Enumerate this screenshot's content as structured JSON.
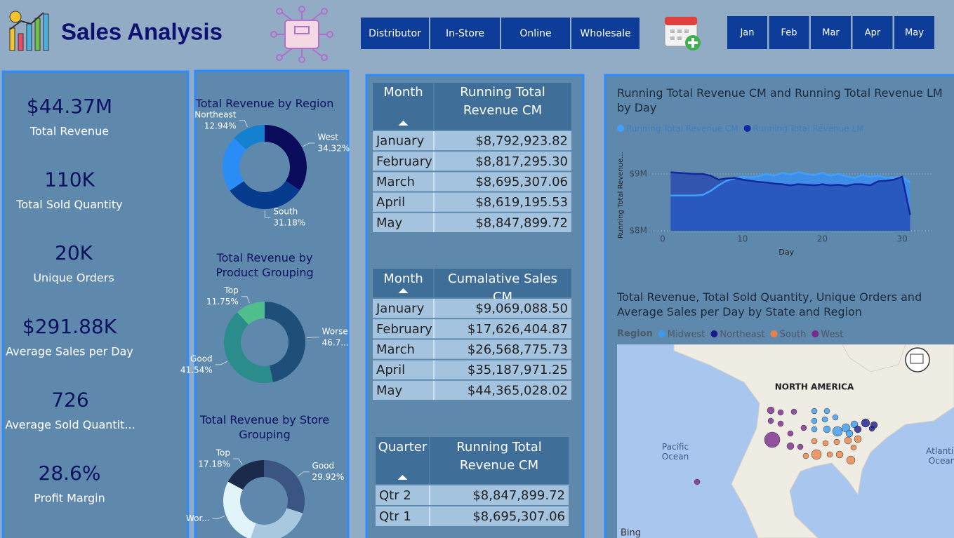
{
  "header": {
    "title": "Sales Analysis"
  },
  "filters": {
    "channels": [
      "Distributor",
      "In-Store",
      "Online",
      "Wholesale"
    ],
    "months": [
      "Jan",
      "Feb",
      "Mar",
      "Apr",
      "May"
    ]
  },
  "kpis": [
    {
      "value": "$44.37M",
      "label": "Total Revenue"
    },
    {
      "value": "110K",
      "label": "Total Sold Quantity"
    },
    {
      "value": "20K",
      "label": "Unique Orders"
    },
    {
      "value": "$291.88K",
      "label": "Average Sales per Day"
    },
    {
      "value": "726",
      "label": "Average Sold Quantit..."
    },
    {
      "value": "28.6%",
      "label": "Profit Margin"
    }
  ],
  "tables": [
    {
      "headers": [
        "Month",
        "Running Total Revenue CM"
      ],
      "rows": [
        [
          "January",
          "$8,792,923.82"
        ],
        [
          "February",
          "$8,817,295.30"
        ],
        [
          "March",
          "$8,695,307.06"
        ],
        [
          "April",
          "$8,619,195.53"
        ],
        [
          "May",
          "$8,847,899.72"
        ]
      ]
    },
    {
      "headers": [
        "Month",
        "Cumalative Sales CM"
      ],
      "rows": [
        [
          "January",
          "$9,069,088.50"
        ],
        [
          "February",
          "$17,626,404.87"
        ],
        [
          "March",
          "$26,568,775.73"
        ],
        [
          "April",
          "$35,187,971.25"
        ],
        [
          "May",
          "$44,365,028.02"
        ]
      ]
    },
    {
      "headers": [
        "Quarter",
        "Running Total Revenue CM"
      ],
      "rows": [
        [
          "Qtr 2",
          "$8,847,899.72"
        ],
        [
          "Qtr 1",
          "$8,695,307.06"
        ]
      ]
    }
  ],
  "chart_data": [
    {
      "type": "pie",
      "title": "Total Revenue by Region",
      "categories": [
        "West",
        "South",
        null,
        "Northeast"
      ],
      "values": [
        34.32,
        31.18,
        21.56,
        12.94
      ],
      "value_labels": [
        "34.32%",
        "31.18%",
        null,
        "12.94%"
      ],
      "colors": [
        "#0b0b5c",
        "#063b8e",
        "#2a8cf5",
        "#1580d0"
      ]
    },
    {
      "type": "pie",
      "title": "Total Revenue by Product Grouping",
      "categories": [
        "Worse",
        "Good",
        "Top"
      ],
      "values": [
        46.71,
        41.54,
        11.75
      ],
      "value_labels": [
        "46.7...",
        "41.54%",
        "11.75%"
      ],
      "colors": [
        "#1f4e79",
        "#2b8c8c",
        "#4fc08d"
      ]
    },
    {
      "type": "pie",
      "title": "Total Revenue by Store Grouping",
      "categories": [
        "Good",
        null,
        "Wor...",
        "Top"
      ],
      "values": [
        29.92,
        25.5,
        27.4,
        17.18
      ],
      "value_labels": [
        "29.92%",
        null,
        null,
        "17.18%"
      ],
      "colors": [
        "#3b5583",
        "#a8c8e0",
        "#e0f4fa",
        "#1b2a4a"
      ]
    },
    {
      "type": "line",
      "title": "Running Total Revenue CM and Running Total Revenue LM by Day",
      "x_label": "Day",
      "y_label": "Running Total Revenue...",
      "x": [
        1,
        2,
        3,
        4,
        5,
        6,
        7,
        8,
        9,
        10,
        11,
        12,
        13,
        14,
        15,
        16,
        17,
        18,
        19,
        20,
        21,
        22,
        23,
        24,
        25,
        26,
        27,
        28,
        29,
        30,
        31
      ],
      "xlim": [
        0,
        31
      ],
      "xticks": [
        0,
        10,
        20,
        30
      ],
      "ylim": [
        8000000,
        9500000
      ],
      "yticks": [
        {
          "value": 8000000,
          "label": "$8M"
        },
        {
          "value": 9000000,
          "label": "$9M"
        }
      ],
      "grid": true,
      "series": [
        {
          "name": "Running Total Revenue CM",
          "color": "#3ea0ff",
          "values": [
            8620000,
            8620000,
            8620000,
            8620000,
            8630000,
            8700000,
            8800000,
            8880000,
            8920000,
            8950000,
            8940000,
            8960000,
            9000000,
            8970000,
            9020000,
            8990000,
            9030000,
            9000000,
            8980000,
            9020000,
            8970000,
            9000000,
            8960000,
            8930000,
            8980000,
            8950000,
            8970000,
            8930000,
            8940000,
            8950000,
            8850000
          ]
        },
        {
          "name": "Running Total Revenue LM",
          "color": "#1428a0",
          "values": [
            9030000,
            9020000,
            9010000,
            9000000,
            9000000,
            8970000,
            8900000,
            8920000,
            8930000,
            8900000,
            8880000,
            8860000,
            8850000,
            8830000,
            8820000,
            8800000,
            8820000,
            8810000,
            8800000,
            8820000,
            8800000,
            8810000,
            8790000,
            8820000,
            8820000,
            8800000,
            8870000,
            8880000,
            8900000,
            8950000,
            8280000
          ]
        }
      ]
    }
  ],
  "map": {
    "title": "Total Revenue, Total Sold Quantity, Unique Orders and Average Sales per Day by State and Region",
    "legend_title": "Region",
    "legend": [
      {
        "name": "Midwest",
        "color": "#3a9bf0"
      },
      {
        "name": "Northeast",
        "color": "#1a1a8c"
      },
      {
        "name": "South",
        "color": "#e8824a"
      },
      {
        "name": "West",
        "color": "#7a2a8a"
      }
    ],
    "continent": "NORTH AMERICA",
    "ocean_west": "Pacific Ocean",
    "ocean_east": "Atlantic Ocean",
    "logo": "Bing"
  }
}
